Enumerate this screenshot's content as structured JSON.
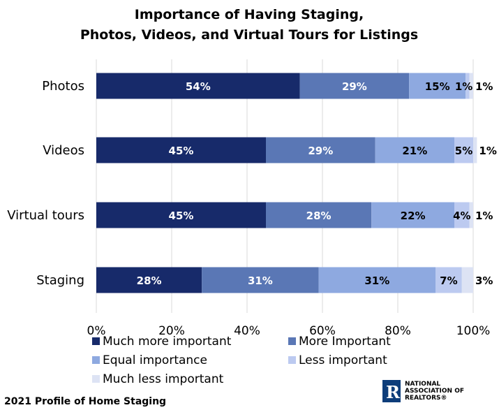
{
  "chart_data": {
    "type": "bar",
    "orientation": "horizontal",
    "stacked": true,
    "title_lines": [
      "Importance of Having Staging,",
      "Photos, Videos, and Virtual Tours for Listings"
    ],
    "categories": [
      "Photos",
      "Videos",
      "Virtual tours",
      "Staging"
    ],
    "series": [
      {
        "name": "Much more important",
        "color": "#172a6a",
        "values": [
          54,
          45,
          45,
          28
        ],
        "labels": [
          "54%",
          "45%",
          "45%",
          "28%"
        ]
      },
      {
        "name": "More Important",
        "color": "#5a77b5",
        "values": [
          29,
          29,
          28,
          31
        ],
        "labels": [
          "29%",
          "29%",
          "28%",
          "31%"
        ]
      },
      {
        "name": "Equal importance",
        "color": "#8ea9e0",
        "values": [
          15,
          21,
          22,
          31
        ],
        "labels": [
          "15%",
          "21%",
          "22%",
          "31%"
        ]
      },
      {
        "name": "Less important",
        "color": "#bccaf0",
        "values": [
          1,
          5,
          4,
          7
        ],
        "labels": [
          "1%",
          "5%",
          "4%",
          "7%"
        ]
      },
      {
        "name": "Much less important",
        "color": "#dde3f4",
        "values": [
          1,
          1,
          1,
          3
        ],
        "labels": [
          "1%",
          "1%",
          "1%",
          "3%"
        ]
      }
    ],
    "x_ticks": [
      "0%",
      "20%",
      "40%",
      "60%",
      "80%",
      "100%"
    ],
    "xlim": [
      0,
      100
    ],
    "grid": "vertical",
    "legend_position": "bottom"
  },
  "footer": "2021 Profile of Home Staging",
  "logo": {
    "mark": "R",
    "lines": [
      "NATIONAL",
      "ASSOCIATION OF",
      "REALTORS®"
    ]
  }
}
